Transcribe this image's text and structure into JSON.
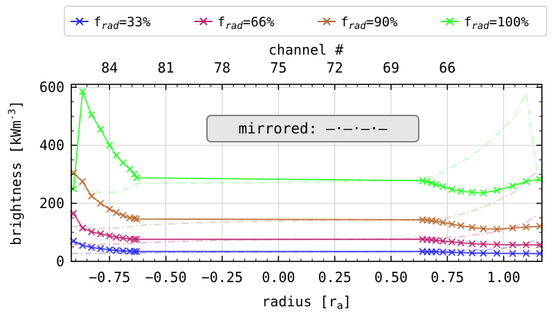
{
  "chart_data": {
    "type": "line",
    "xlabel": "radius [r",
    "xlabel_sub": "a",
    "xlabel_end": "]",
    "ylabel": "brightness [kWm",
    "ylabel_sup": "-3",
    "ylabel_end": "]",
    "top_axis_label": "channel #",
    "xlim": [
      -0.92,
      1.17
    ],
    "ylim": [
      0,
      610
    ],
    "x_ticks": [
      -0.75,
      -0.5,
      -0.25,
      0.0,
      0.25,
      0.5,
      0.75,
      1.0
    ],
    "x_tick_labels": [
      "−0.75",
      "−0.50",
      "−0.25",
      "0.00",
      "0.25",
      "0.50",
      "0.75",
      "1.00"
    ],
    "y_ticks": [
      0,
      200,
      400,
      600
    ],
    "y_tick_labels": [
      "0",
      "200",
      "400",
      "600"
    ],
    "top_ticks": [
      {
        "x": -0.75,
        "label": "84"
      },
      {
        "x": -0.5,
        "label": "81"
      },
      {
        "x": -0.25,
        "label": "78"
      },
      {
        "x": 0.0,
        "label": "75"
      },
      {
        "x": 0.25,
        "label": "72"
      },
      {
        "x": 0.5,
        "label": "69"
      },
      {
        "x": 0.75,
        "label": "66"
      }
    ],
    "grid": true,
    "legend_position": "top-outside",
    "annotation": "mirrored: —·—·—·—",
    "series": [
      {
        "name_main": "f",
        "name_sub": "rad",
        "name_rest": "=33%",
        "color": "#2727f0",
        "x": [
          -0.91,
          -0.87,
          -0.83,
          -0.79,
          -0.75,
          -0.72,
          -0.69,
          -0.66,
          -0.64,
          -0.63,
          0.64,
          0.66,
          0.68,
          0.7,
          0.73,
          0.77,
          0.81,
          0.86,
          0.91,
          0.97,
          1.04,
          1.1,
          1.16
        ],
        "y": [
          70,
          55,
          48,
          44,
          40,
          38,
          36,
          35,
          34,
          34,
          34,
          33,
          33,
          33,
          32,
          31,
          30,
          29,
          28,
          28,
          27,
          27,
          27
        ],
        "mirror_x": [
          -0.92,
          -0.7,
          -0.55,
          -0.3,
          0.0,
          0.3,
          0.6,
          0.8,
          0.95,
          1.05,
          1.1,
          1.15
        ],
        "mirror_y": [
          27,
          28,
          30,
          31,
          32,
          33,
          34,
          36,
          42,
          50,
          62,
          75
        ]
      },
      {
        "name_main": "f",
        "name_sub": "rad",
        "name_rest": "=66%",
        "color": "#c0206e",
        "x": [
          -0.91,
          -0.87,
          -0.83,
          -0.79,
          -0.75,
          -0.72,
          -0.69,
          -0.66,
          -0.64,
          -0.63,
          0.64,
          0.66,
          0.68,
          0.7,
          0.73,
          0.77,
          0.81,
          0.86,
          0.91,
          0.97,
          1.04,
          1.1,
          1.16
        ],
        "y": [
          165,
          115,
          102,
          95,
          88,
          83,
          80,
          77,
          76,
          76,
          76,
          75,
          74,
          72,
          70,
          67,
          64,
          61,
          59,
          58,
          57,
          57,
          57
        ],
        "mirror_x": [
          -0.92,
          -0.7,
          -0.55,
          -0.3,
          0.0,
          0.3,
          0.6,
          0.8,
          0.95,
          1.05,
          1.1,
          1.15
        ],
        "mirror_y": [
          57,
          60,
          66,
          72,
          75,
          76,
          78,
          84,
          100,
          120,
          135,
          160
        ]
      },
      {
        "name_main": "f",
        "name_sub": "rad",
        "name_rest": "=90%",
        "color": "#b8692e",
        "x": [
          -0.91,
          -0.87,
          -0.83,
          -0.79,
          -0.75,
          -0.72,
          -0.69,
          -0.66,
          -0.64,
          -0.63,
          0.64,
          0.66,
          0.68,
          0.7,
          0.73,
          0.77,
          0.81,
          0.86,
          0.91,
          0.97,
          1.04,
          1.1,
          1.16
        ],
        "y": [
          305,
          275,
          225,
          200,
          180,
          168,
          158,
          150,
          148,
          146,
          143,
          142,
          140,
          138,
          134,
          128,
          123,
          117,
          112,
          111,
          115,
          118,
          121
        ],
        "mirror_x": [
          -0.92,
          -0.8,
          -0.7,
          -0.6,
          -0.3,
          0.0,
          0.3,
          0.6,
          0.75,
          0.85,
          0.95,
          1.05,
          1.1,
          1.15
        ],
        "mirror_y": [
          121,
          113,
          115,
          125,
          135,
          140,
          142,
          145,
          150,
          170,
          200,
          240,
          280,
          310
        ]
      },
      {
        "name_main": "f",
        "name_sub": "rad",
        "name_rest": "=100%",
        "color": "#22ff22",
        "x": [
          -0.91,
          -0.87,
          -0.83,
          -0.79,
          -0.75,
          -0.72,
          -0.69,
          -0.66,
          -0.64,
          -0.63,
          0.64,
          0.66,
          0.68,
          0.7,
          0.73,
          0.77,
          0.81,
          0.86,
          0.91,
          0.97,
          1.04,
          1.1,
          1.16
        ],
        "y": [
          250,
          585,
          505,
          455,
          400,
          365,
          340,
          318,
          300,
          288,
          278,
          275,
          270,
          265,
          258,
          248,
          242,
          238,
          236,
          245,
          260,
          275,
          283
        ],
        "mirror_x": [
          -0.92,
          -0.85,
          -0.78,
          -0.7,
          -0.62,
          -0.3,
          0.0,
          0.3,
          0.6,
          0.7,
          0.85,
          0.95,
          1.05,
          1.1,
          1.15
        ],
        "mirror_y": [
          283,
          245,
          236,
          240,
          270,
          270,
          272,
          275,
          280,
          295,
          360,
          420,
          500,
          580,
          300
        ]
      }
    ]
  }
}
